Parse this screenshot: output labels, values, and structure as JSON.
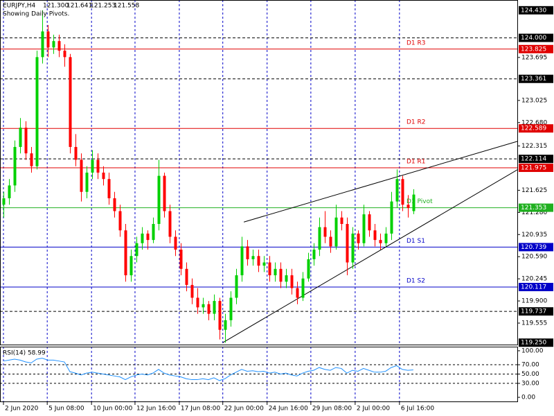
{
  "chart_data": {
    "type": "candlestick",
    "header": {
      "symbol": "EURJPY,H4",
      "open": "121.300",
      "high": "121.641",
      "low": "121.253",
      "close": "121.558"
    },
    "subtitle": "Showing Daily Pivots.",
    "bull_color": "#00d000",
    "bear_color": "#ff0000",
    "xlim": [
      -0.625,
      92.9
    ],
    "xticks": [
      {
        "value": 0,
        "label": "2 Jun 2020"
      },
      {
        "value": 7.9,
        "label": "5 Jun 08:00"
      },
      {
        "value": 15.9,
        "label": "10 Jun 00:00"
      },
      {
        "value": 23.75,
        "label": "12 Jun 16:00"
      },
      {
        "value": 31.75,
        "label": "17 Jun 08:00"
      },
      {
        "value": 39.6,
        "label": "22 Jun 00:00"
      },
      {
        "value": 47.6,
        "label": "24 Jun 16:00"
      },
      {
        "value": 55.5,
        "label": "29 Jun 08:00"
      },
      {
        "value": 63.5,
        "label": "2 Jul 00:00"
      },
      {
        "value": 71.5,
        "label": "6 Jul 16:00"
      }
    ],
    "ylim": [
      119.22,
      124.59
    ],
    "yticks": [
      {
        "value": 123.695,
        "label": "123.695"
      },
      {
        "value": 123.025,
        "label": "123.025"
      },
      {
        "value": 122.68,
        "label": "122.680"
      },
      {
        "value": 122.315,
        "label": "122.315"
      },
      {
        "value": 121.625,
        "label": "121.625"
      },
      {
        "value": 121.28,
        "label": "121.280"
      },
      {
        "value": 120.935,
        "label": "120.935"
      },
      {
        "value": 120.59,
        "label": "120.590"
      },
      {
        "value": 120.245,
        "label": "120.245"
      },
      {
        "value": 119.9,
        "label": "119.900"
      },
      {
        "value": 119.555,
        "label": "119.555"
      }
    ],
    "levels": [
      {
        "value": 124.43,
        "label": "124.430",
        "color": "#000000",
        "style": "label"
      },
      {
        "value": 124.0,
        "label": "124.000",
        "color": "#000000",
        "style": "dashed"
      },
      {
        "value": 123.825,
        "label": "123.825",
        "name": "D1 R3",
        "color": "#e00000",
        "style": "solid"
      },
      {
        "value": 123.361,
        "label": "123.361",
        "color": "#000000",
        "style": "dashed"
      },
      {
        "value": 122.589,
        "label": "122.589",
        "name": "D1 R2",
        "color": "#e00000",
        "style": "solid"
      },
      {
        "value": 122.114,
        "label": "122.114",
        "color": "#000000",
        "style": "dashed"
      },
      {
        "value": 121.975,
        "label": "121.975",
        "name": "D1 R1",
        "color": "#e00000",
        "style": "solid"
      },
      {
        "value": 121.353,
        "label": "121.353",
        "name": "D1 Pivot",
        "color": "#20b020",
        "style": "solid"
      },
      {
        "value": 120.739,
        "label": "120.739",
        "name": "D1 S1",
        "color": "#0000c8",
        "style": "solid"
      },
      {
        "value": 120.117,
        "label": "120.117",
        "name": "D1 S2",
        "color": "#0000c8",
        "style": "solid"
      },
      {
        "value": 119.737,
        "label": "119.737",
        "color": "#000000",
        "style": "dashed"
      },
      {
        "value": 119.25,
        "label": "119.250",
        "color": "#000000",
        "style": "label"
      }
    ],
    "trendlines": [
      {
        "points": [
          [
            39.6,
            119.25
          ],
          [
            92.9,
            121.95
          ]
        ]
      },
      {
        "points": [
          [
            43.4,
            121.13
          ],
          [
            92.9,
            122.39
          ]
        ]
      }
    ],
    "candles": [
      [
        121.4,
        121.6,
        121.2,
        121.5
      ],
      [
        121.5,
        121.8,
        121.4,
        121.7
      ],
      [
        121.7,
        122.4,
        121.6,
        122.3
      ],
      [
        122.3,
        122.75,
        122.2,
        122.6
      ],
      [
        122.6,
        122.7,
        122.1,
        122.2
      ],
      [
        122.2,
        122.3,
        121.9,
        122.0
      ],
      [
        122.0,
        123.8,
        121.95,
        123.7
      ],
      [
        123.7,
        124.43,
        123.6,
        124.1
      ],
      [
        124.1,
        124.2,
        123.7,
        123.85
      ],
      [
        123.85,
        124.05,
        123.75,
        123.95
      ],
      [
        123.95,
        124.05,
        123.7,
        123.8
      ],
      [
        123.8,
        123.9,
        123.55,
        123.7
      ],
      [
        123.7,
        123.75,
        122.2,
        122.3
      ],
      [
        122.3,
        122.5,
        122.0,
        122.1
      ],
      [
        122.1,
        122.2,
        121.45,
        121.6
      ],
      [
        121.6,
        122.0,
        121.5,
        121.9
      ],
      [
        121.9,
        122.25,
        121.8,
        122.1
      ],
      [
        122.1,
        122.2,
        121.8,
        121.9
      ],
      [
        121.9,
        122.0,
        121.7,
        121.8
      ],
      [
        121.8,
        121.9,
        121.4,
        121.5
      ],
      [
        121.5,
        121.6,
        121.2,
        121.3
      ],
      [
        121.3,
        121.4,
        120.9,
        121.0
      ],
      [
        121.0,
        121.1,
        120.2,
        120.3
      ],
      [
        120.3,
        120.7,
        120.2,
        120.6
      ],
      [
        120.6,
        120.9,
        120.5,
        120.8
      ],
      [
        120.8,
        121.05,
        120.7,
        120.95
      ],
      [
        120.95,
        121.0,
        120.7,
        120.85
      ],
      [
        120.85,
        121.2,
        120.8,
        121.1
      ],
      [
        121.1,
        122.1,
        121.0,
        121.85
      ],
      [
        121.85,
        121.9,
        121.2,
        121.3
      ],
      [
        121.3,
        121.4,
        120.8,
        120.9
      ],
      [
        120.9,
        121.0,
        120.6,
        120.7
      ],
      [
        120.7,
        120.8,
        120.3,
        120.4
      ],
      [
        120.4,
        120.5,
        120.05,
        120.15
      ],
      [
        120.15,
        120.25,
        119.85,
        119.95
      ],
      [
        119.95,
        120.1,
        119.7,
        119.8
      ],
      [
        119.8,
        119.95,
        119.7,
        119.85
      ],
      [
        119.85,
        119.9,
        119.6,
        119.7
      ],
      [
        119.7,
        120.0,
        119.6,
        119.9
      ],
      [
        119.9,
        119.95,
        119.3,
        119.45
      ],
      [
        119.45,
        119.7,
        119.25,
        119.6
      ],
      [
        119.6,
        120.05,
        119.5,
        119.95
      ],
      [
        119.95,
        120.4,
        119.85,
        120.3
      ],
      [
        120.3,
        120.9,
        120.2,
        120.75
      ],
      [
        120.75,
        120.85,
        120.45,
        120.55
      ],
      [
        120.55,
        120.7,
        120.45,
        120.6
      ],
      [
        120.6,
        120.7,
        120.35,
        120.45
      ],
      [
        120.45,
        120.6,
        120.35,
        120.5
      ],
      [
        120.5,
        120.6,
        120.2,
        120.3
      ],
      [
        120.3,
        120.5,
        120.2,
        120.4
      ],
      [
        120.4,
        120.5,
        120.1,
        120.2
      ],
      [
        120.2,
        120.4,
        120.1,
        120.3
      ],
      [
        120.3,
        120.4,
        120.0,
        120.1
      ],
      [
        120.1,
        120.2,
        119.85,
        119.95
      ],
      [
        119.95,
        120.35,
        119.9,
        120.25
      ],
      [
        120.25,
        120.65,
        120.2,
        120.55
      ],
      [
        120.55,
        120.8,
        120.45,
        120.7
      ],
      [
        120.7,
        121.2,
        120.6,
        121.05
      ],
      [
        121.05,
        121.3,
        120.8,
        120.9
      ],
      [
        120.9,
        121.0,
        120.65,
        120.75
      ],
      [
        120.75,
        121.4,
        120.7,
        121.2
      ],
      [
        121.2,
        121.3,
        121.0,
        121.1
      ],
      [
        121.1,
        121.2,
        120.3,
        120.5
      ],
      [
        120.5,
        121.05,
        120.4,
        120.95
      ],
      [
        120.95,
        121.0,
        120.7,
        120.8
      ],
      [
        120.8,
        121.4,
        120.75,
        121.25
      ],
      [
        121.25,
        121.3,
        120.9,
        121.0
      ],
      [
        121.0,
        121.1,
        120.75,
        120.85
      ],
      [
        120.85,
        120.95,
        120.7,
        120.8
      ],
      [
        120.8,
        121.05,
        120.75,
        120.95
      ],
      [
        120.95,
        121.6,
        120.85,
        121.45
      ],
      [
        121.45,
        121.95,
        121.35,
        121.8
      ],
      [
        121.8,
        121.85,
        121.3,
        121.4
      ],
      [
        121.4,
        121.55,
        121.2,
        121.35
      ],
      [
        121.3,
        121.641,
        121.253,
        121.558
      ]
    ],
    "rsi": {
      "label": "RSI(14) 58.99",
      "ylim": [
        -10.3,
        108.8
      ],
      "yticks": [
        {
          "value": 100,
          "label": "100.00"
        },
        {
          "value": 70,
          "label": "70.00"
        },
        {
          "value": 50,
          "label": "50.00"
        },
        {
          "value": 30,
          "label": "30.00"
        },
        {
          "value": 0,
          "label": "0.00"
        }
      ],
      "levels": [
        70,
        50,
        30
      ],
      "color": "#1e90ff",
      "values": [
        78,
        80,
        82,
        80,
        76,
        74,
        82,
        84,
        80,
        80,
        78,
        76,
        55,
        52,
        48,
        52,
        54,
        52,
        50,
        48,
        46,
        44,
        38,
        44,
        48,
        50,
        48,
        52,
        60,
        52,
        48,
        46,
        44,
        40,
        38,
        38,
        40,
        38,
        42,
        36,
        40,
        48,
        54,
        60,
        56,
        57,
        55,
        56,
        52,
        54,
        50,
        52,
        48,
        46,
        52,
        56,
        58,
        64,
        60,
        58,
        64,
        62,
        52,
        58,
        56,
        62,
        58,
        54,
        54,
        56,
        64,
        68,
        60,
        58,
        58.99
      ]
    }
  }
}
